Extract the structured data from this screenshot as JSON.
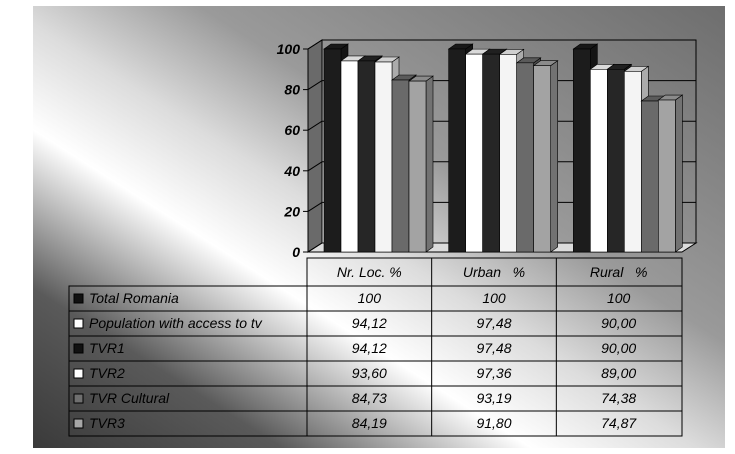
{
  "chart_data": {
    "type": "bar",
    "categories": [
      "Nr. Loc. %",
      "Urban   %",
      "Rural   %"
    ],
    "ylim": [
      0,
      100
    ],
    "yticks": [
      0,
      20,
      40,
      60,
      80,
      100
    ],
    "grid": true,
    "legend_placement": "data table below chart",
    "series": [
      {
        "name": "Total Romania",
        "values": [
          100,
          100,
          100
        ],
        "labels": [
          "100",
          "100",
          "100"
        ],
        "color": "#1c1c1c",
        "swatch": "#111111"
      },
      {
        "name": "Population with access to tv",
        "values": [
          94.12,
          97.48,
          90.0
        ],
        "labels": [
          "94,12",
          "97,48",
          "90,00"
        ],
        "color": "#ffffff",
        "swatch": "#ffffff"
      },
      {
        "name": "TVR1",
        "values": [
          94.12,
          97.48,
          90.0
        ],
        "labels": [
          "94,12",
          "97,48",
          "90,00"
        ],
        "color": "#262626",
        "swatch": "#111111"
      },
      {
        "name": "TVR2",
        "values": [
          93.6,
          97.36,
          89.0
        ],
        "labels": [
          "93,60",
          "97,36",
          "89,00"
        ],
        "color": "#f4f4f4",
        "swatch": "#ffffff"
      },
      {
        "name": "TVR Cultural",
        "values": [
          84.73,
          93.19,
          74.38
        ],
        "labels": [
          "84,73",
          "93,19",
          "74,38"
        ],
        "color": "#6a6a6a",
        "swatch": "#6f6f6f"
      },
      {
        "name": "TVR3",
        "values": [
          84.19,
          91.8,
          74.87
        ],
        "labels": [
          "84,19",
          "91,80",
          "74,87"
        ],
        "color": "#a3a3a3",
        "swatch": "#a8a8a8"
      }
    ]
  }
}
